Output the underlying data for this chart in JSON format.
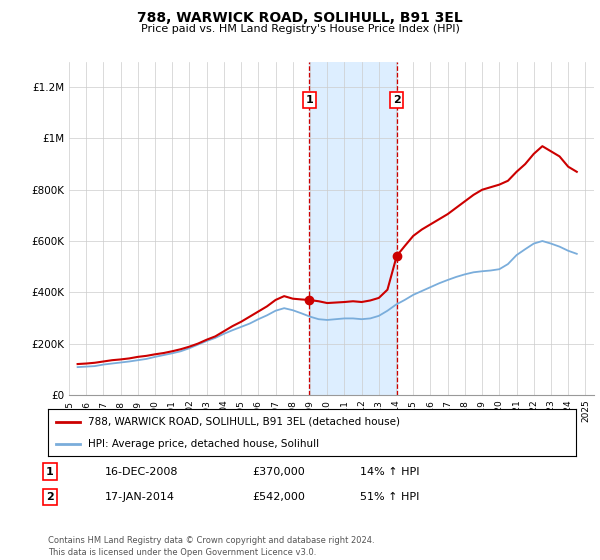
{
  "title": "788, WARWICK ROAD, SOLIHULL, B91 3EL",
  "subtitle": "Price paid vs. HM Land Registry's House Price Index (HPI)",
  "ylabel_ticks": [
    "£0",
    "£200K",
    "£400K",
    "£600K",
    "£800K",
    "£1M",
    "£1.2M"
  ],
  "ytick_values": [
    0,
    200000,
    400000,
    600000,
    800000,
    1000000,
    1200000
  ],
  "ylim": [
    0,
    1300000
  ],
  "xlim_start": 1995.0,
  "xlim_end": 2025.5,
  "property_color": "#cc0000",
  "hpi_color": "#7aaddb",
  "highlight_bg": "#ddeeff",
  "transaction1_date": 2008.96,
  "transaction1_price": 370000,
  "transaction1_label": "1",
  "transaction2_date": 2014.04,
  "transaction2_price": 542000,
  "transaction2_label": "2",
  "legend_property": "788, WARWICK ROAD, SOLIHULL, B91 3EL (detached house)",
  "legend_hpi": "HPI: Average price, detached house, Solihull",
  "table_row1": [
    "1",
    "16-DEC-2008",
    "£370,000",
    "14% ↑ HPI"
  ],
  "table_row2": [
    "2",
    "17-JAN-2014",
    "£542,000",
    "51% ↑ HPI"
  ],
  "footnote": "Contains HM Land Registry data © Crown copyright and database right 2024.\nThis data is licensed under the Open Government Licence v3.0.",
  "property_x": [
    1995.5,
    1996.0,
    1996.5,
    1997.0,
    1997.5,
    1998.0,
    1998.5,
    1999.0,
    1999.5,
    2000.0,
    2000.5,
    2001.0,
    2001.5,
    2002.0,
    2002.5,
    2003.0,
    2003.5,
    2004.0,
    2004.5,
    2005.0,
    2005.5,
    2006.0,
    2006.5,
    2007.0,
    2007.5,
    2008.0,
    2008.5,
    2008.96,
    2009.5,
    2010.0,
    2010.5,
    2011.0,
    2011.5,
    2012.0,
    2012.5,
    2013.0,
    2013.5,
    2014.04,
    2014.5,
    2015.0,
    2015.5,
    2016.0,
    2016.5,
    2017.0,
    2017.5,
    2018.0,
    2018.5,
    2019.0,
    2019.5,
    2020.0,
    2020.5,
    2021.0,
    2021.5,
    2022.0,
    2022.5,
    2023.0,
    2023.5,
    2024.0,
    2024.5
  ],
  "property_y": [
    120000,
    122000,
    125000,
    130000,
    135000,
    138000,
    142000,
    148000,
    152000,
    158000,
    163000,
    170000,
    178000,
    188000,
    200000,
    215000,
    228000,
    248000,
    268000,
    285000,
    305000,
    325000,
    345000,
    370000,
    385000,
    375000,
    372000,
    370000,
    365000,
    358000,
    360000,
    362000,
    365000,
    362000,
    368000,
    378000,
    410000,
    542000,
    580000,
    620000,
    645000,
    665000,
    685000,
    705000,
    730000,
    755000,
    780000,
    800000,
    810000,
    820000,
    835000,
    870000,
    900000,
    940000,
    970000,
    950000,
    930000,
    890000,
    870000
  ],
  "hpi_x": [
    1995.5,
    1996.0,
    1996.5,
    1997.0,
    1997.5,
    1998.0,
    1998.5,
    1999.0,
    1999.5,
    2000.0,
    2000.5,
    2001.0,
    2001.5,
    2002.0,
    2002.5,
    2003.0,
    2003.5,
    2004.0,
    2004.5,
    2005.0,
    2005.5,
    2006.0,
    2006.5,
    2007.0,
    2007.5,
    2008.0,
    2008.5,
    2009.0,
    2009.5,
    2010.0,
    2010.5,
    2011.0,
    2011.5,
    2012.0,
    2012.5,
    2013.0,
    2013.5,
    2014.0,
    2014.5,
    2015.0,
    2015.5,
    2016.0,
    2016.5,
    2017.0,
    2017.5,
    2018.0,
    2018.5,
    2019.0,
    2019.5,
    2020.0,
    2020.5,
    2021.0,
    2021.5,
    2022.0,
    2022.5,
    2023.0,
    2023.5,
    2024.0,
    2024.5
  ],
  "hpi_y": [
    108000,
    110000,
    112000,
    118000,
    122000,
    126000,
    130000,
    135000,
    140000,
    148000,
    155000,
    162000,
    170000,
    182000,
    196000,
    210000,
    222000,
    238000,
    252000,
    265000,
    278000,
    295000,
    310000,
    328000,
    338000,
    330000,
    318000,
    305000,
    295000,
    292000,
    295000,
    298000,
    298000,
    295000,
    298000,
    308000,
    328000,
    352000,
    370000,
    390000,
    405000,
    420000,
    435000,
    448000,
    460000,
    470000,
    478000,
    482000,
    485000,
    490000,
    510000,
    545000,
    568000,
    590000,
    600000,
    590000,
    578000,
    562000,
    550000
  ]
}
